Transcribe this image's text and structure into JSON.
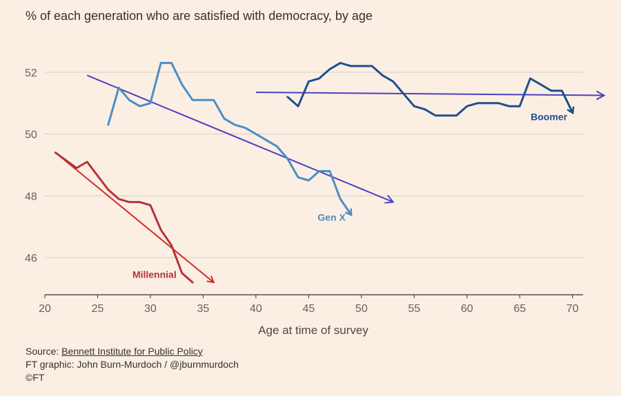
{
  "header": {
    "title": "% of each generation who are satisfied with democracy, by age"
  },
  "footer": {
    "source_prefix": "Source: ",
    "source_name": "Bennett Institute for Public Policy",
    "credit": "FT graphic: John Burn-Murdoch / @jburnmurdoch",
    "copyright": "©FT"
  },
  "chart_data": {
    "type": "line",
    "title": "% of each generation who are satisfied with democracy, by age",
    "xlabel": "Age at time of survey",
    "ylabel": "",
    "xlim": [
      20,
      71
    ],
    "ylim": [
      44.8,
      53
    ],
    "x_ticks": [
      20,
      25,
      30,
      35,
      40,
      45,
      50,
      55,
      60,
      65,
      70
    ],
    "y_ticks": [
      46,
      48,
      50,
      52
    ],
    "grid": "horizontal",
    "series": [
      {
        "name": "Millennial",
        "color": "#b5323a",
        "x": [
          21,
          23,
          24,
          26,
          27,
          28,
          29,
          30,
          31,
          32,
          33,
          34
        ],
        "y": [
          49.4,
          48.9,
          49.1,
          48.2,
          47.9,
          47.8,
          47.8,
          47.7,
          46.9,
          46.4,
          45.5,
          45.2
        ]
      },
      {
        "name": "Gen X",
        "color": "#4a8ec5",
        "x": [
          26,
          27,
          28,
          29,
          30,
          31,
          32,
          33,
          34,
          35,
          36,
          37,
          38,
          39,
          40,
          41,
          42,
          43,
          44,
          45,
          46,
          47,
          48,
          49
        ],
        "y": [
          50.3,
          51.5,
          51.1,
          50.9,
          51.0,
          52.3,
          52.3,
          51.6,
          51.1,
          51.1,
          51.1,
          50.5,
          50.3,
          50.2,
          50.0,
          49.8,
          49.6,
          49.2,
          48.6,
          48.5,
          48.8,
          48.8,
          47.9,
          47.4
        ]
      },
      {
        "name": "Boomer",
        "color": "#1f4e8f",
        "x": [
          43,
          44,
          45,
          46,
          47,
          48,
          49,
          50,
          51,
          52,
          53,
          54,
          55,
          56,
          57,
          58,
          59,
          60,
          61,
          62,
          63,
          64,
          65,
          66,
          67,
          68,
          69,
          70
        ],
        "y": [
          51.2,
          50.9,
          51.7,
          51.8,
          52.1,
          52.3,
          52.2,
          52.2,
          52.2,
          51.9,
          51.7,
          51.3,
          50.9,
          50.8,
          50.6,
          50.6,
          50.6,
          50.9,
          51.0,
          51.0,
          51.0,
          50.9,
          50.9,
          51.8,
          51.6,
          51.4,
          51.4,
          50.7
        ]
      }
    ],
    "annotations": [
      {
        "name": "Millennial trend",
        "color": "#d42b2b",
        "x": [
          21,
          36
        ],
        "y": [
          49.4,
          45.2
        ]
      },
      {
        "name": "Gen X trend",
        "color": "#4b3fc2",
        "x": [
          24,
          53
        ],
        "y": [
          51.9,
          47.8
        ]
      },
      {
        "name": "Boomer trend",
        "color": "#4b3fc2",
        "x": [
          40,
          73
        ],
        "y": [
          51.35,
          51.25
        ]
      }
    ]
  }
}
